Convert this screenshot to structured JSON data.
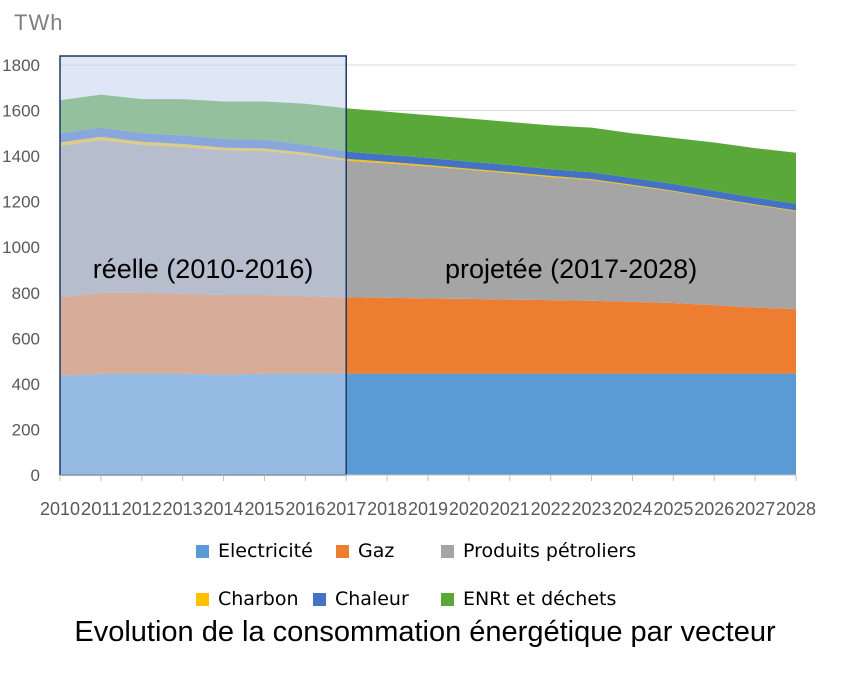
{
  "chart_data": {
    "type": "area",
    "stacked": true,
    "unit_label": "TWh",
    "caption": "Evolution de la consommation énergétique par vecteur",
    "x": [
      "2010",
      "2011",
      "2012",
      "2013",
      "2014",
      "2015",
      "2016",
      "2017",
      "2018",
      "2019",
      "2020",
      "2021",
      "2022",
      "2023",
      "2024",
      "2025",
      "2026",
      "2027",
      "2028"
    ],
    "ylim": [
      0,
      1800
    ],
    "yticks": [
      0,
      200,
      400,
      600,
      800,
      1000,
      1200,
      1400,
      1600,
      1800
    ],
    "grid": true,
    "legend_position": "bottom",
    "series": [
      {
        "name": "Electricité",
        "color": "#5b9bd5",
        "values": [
          435,
          445,
          445,
          445,
          440,
          445,
          445,
          445,
          445,
          445,
          445,
          445,
          445,
          445,
          445,
          445,
          445,
          445,
          445
        ]
      },
      {
        "name": "Gaz",
        "color": "#ed7d31",
        "values": [
          345,
          355,
          355,
          350,
          350,
          345,
          340,
          335,
          333,
          330,
          328,
          325,
          323,
          320,
          315,
          310,
          300,
          290,
          283
        ]
      },
      {
        "name": "Produits pétroliers",
        "color": "#a5a5a5",
        "values": [
          665,
          670,
          650,
          645,
          635,
          632,
          620,
          600,
          590,
          580,
          567,
          555,
          540,
          530,
          510,
          490,
          470,
          450,
          430
        ]
      },
      {
        "name": "Charbon",
        "color": "#ffc000",
        "values": [
          15,
          15,
          13,
          13,
          12,
          12,
          10,
          8,
          7,
          6,
          5,
          5,
          5,
          4,
          4,
          3,
          3,
          3,
          3
        ]
      },
      {
        "name": "Chaleur",
        "color": "#4472c4",
        "values": [
          40,
          40,
          38,
          38,
          38,
          38,
          35,
          32,
          31,
          31,
          31,
          31,
          30,
          30,
          30,
          30,
          30,
          30,
          30
        ]
      },
      {
        "name": "ENRt et déchets",
        "color": "#5aa83a",
        "values": [
          145,
          145,
          149,
          159,
          165,
          168,
          180,
          190,
          189,
          188,
          189,
          189,
          192,
          196,
          196,
          202,
          212,
          217,
          224
        ]
      }
    ],
    "annotations": [
      {
        "text": "réelle (2010-2016)",
        "from": "2010",
        "to": "2017"
      },
      {
        "text": "projetée (2017-2028)",
        "from": "2017",
        "to": "2028"
      }
    ],
    "highlight_range": {
      "from": "2010",
      "to": "2017",
      "fill": "#c5d3ee",
      "stroke": "#1f3864"
    }
  }
}
